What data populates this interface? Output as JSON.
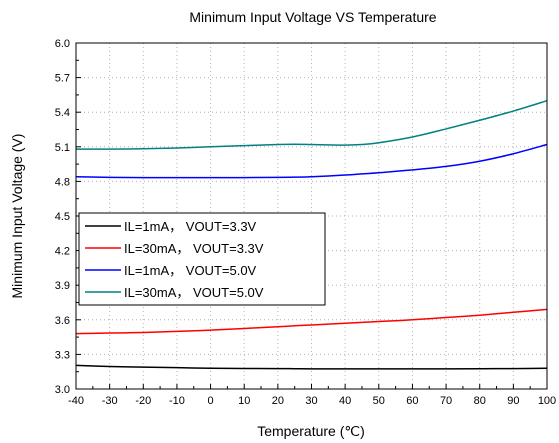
{
  "chart_data": {
    "type": "line",
    "title": "Minimum Input Voltage VS Temperature",
    "xlabel": "Temperature (℃)",
    "ylabel": "Minimum Input Voltage (V)",
    "xlim": [
      -40,
      100
    ],
    "ylim": [
      3.0,
      6.0
    ],
    "xticks": [
      -40,
      -30,
      -20,
      -10,
      0,
      10,
      20,
      30,
      40,
      50,
      60,
      70,
      80,
      90,
      100
    ],
    "yticks": [
      "3.0",
      "3.3",
      "3.6",
      "3.9",
      "4.2",
      "4.5",
      "4.8",
      "5.1",
      "5.4",
      "5.7",
      "6.0"
    ],
    "grid": true,
    "legend_position": "center-left",
    "x": [
      -40,
      -30,
      -20,
      -10,
      0,
      10,
      20,
      25,
      30,
      40,
      45,
      50,
      60,
      70,
      80,
      90,
      100
    ],
    "series": [
      {
        "name": "IL=1mA， VOUT=3.3V",
        "color": "#000000",
        "values": [
          3.205,
          3.195,
          3.19,
          3.185,
          3.18,
          3.178,
          3.177,
          3.176,
          3.175,
          3.175,
          3.175,
          3.175,
          3.175,
          3.175,
          3.176,
          3.177,
          3.18
        ]
      },
      {
        "name": "IL=30mA， VOUT=3.3V",
        "color": "#ff0000",
        "values": [
          3.48,
          3.485,
          3.49,
          3.5,
          3.51,
          3.525,
          3.54,
          3.548,
          3.555,
          3.57,
          3.578,
          3.585,
          3.6,
          3.62,
          3.64,
          3.665,
          3.69
        ]
      },
      {
        "name": "IL=1mA， VOUT=5.0V",
        "color": "#0000ff",
        "values": [
          4.84,
          4.835,
          4.833,
          4.833,
          4.833,
          4.833,
          4.835,
          4.837,
          4.84,
          4.855,
          4.865,
          4.875,
          4.9,
          4.93,
          4.975,
          5.04,
          5.12
        ]
      },
      {
        "name": "IL=30mA， VOUT=5.0V",
        "color": "#008080",
        "values": [
          5.08,
          5.08,
          5.083,
          5.09,
          5.1,
          5.11,
          5.12,
          5.122,
          5.12,
          5.115,
          5.12,
          5.135,
          5.185,
          5.255,
          5.33,
          5.41,
          5.5
        ]
      }
    ]
  }
}
